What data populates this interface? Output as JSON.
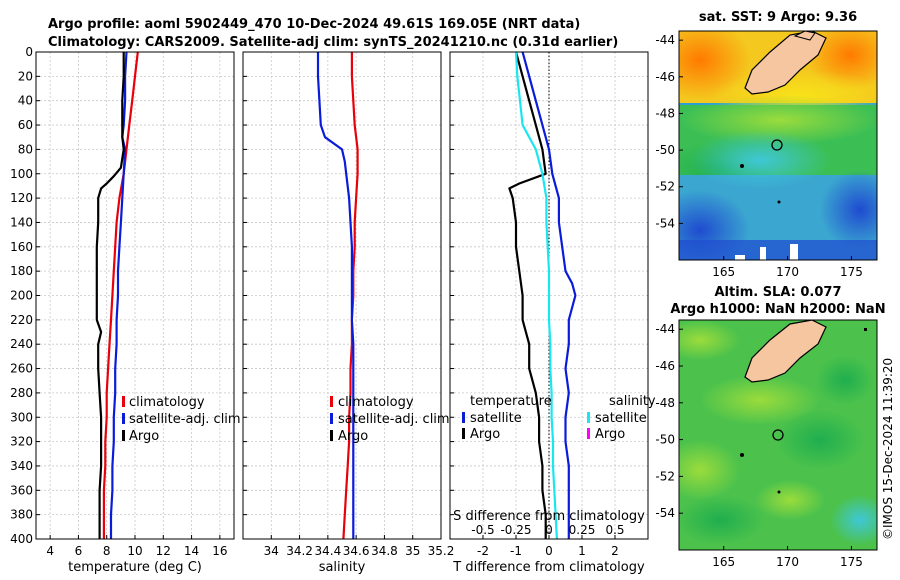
{
  "title_line1": "Argo profile: aoml 5902449_470 10-Dec-2024 49.61S 169.05E (NRT data)",
  "title_line2": "Climatology: CARS2009. Satellite-adj clim: synTS_20241210.nc (0.31d earlier)",
  "depth_ticks": [
    "0",
    "20",
    "40",
    "60",
    "80",
    "100",
    "120",
    "140",
    "160",
    "180",
    "200",
    "220",
    "240",
    "260",
    "280",
    "300",
    "320",
    "340",
    "360",
    "380",
    "400"
  ],
  "colors": {
    "climatology": "#e8000b",
    "satellite": "#0a1bd9",
    "argo": "#000000",
    "sat_salinity": "#19e6f0",
    "sat_s_magenta": "#ff00ff"
  },
  "chart_data": [
    {
      "type": "line",
      "name": "temperature",
      "xlabel": "temperature (deg C)",
      "xlim": [
        3,
        17
      ],
      "ylim": [
        0,
        400
      ],
      "xticks": [
        "4",
        "6",
        "8",
        "10",
        "12",
        "14",
        "16"
      ],
      "legend": [
        "climatology",
        "satellite-adj. clim",
        "Argo"
      ],
      "series": [
        {
          "name": "climatology",
          "depth": [
            0,
            20,
            40,
            60,
            80,
            100,
            120,
            140,
            160,
            180,
            200,
            220,
            240,
            260,
            280,
            300,
            320,
            340,
            360,
            380,
            400
          ],
          "values": [
            10.2,
            10.0,
            9.8,
            9.6,
            9.4,
            9.2,
            8.9,
            8.7,
            8.6,
            8.5,
            8.4,
            8.3,
            8.2,
            8.1,
            8.0,
            8.0,
            7.9,
            7.9,
            7.8,
            7.8,
            7.8
          ]
        },
        {
          "name": "satellite-adj. clim",
          "depth": [
            0,
            20,
            40,
            60,
            70,
            80,
            100,
            120,
            140,
            160,
            180,
            200,
            220,
            240,
            260,
            280,
            300,
            320,
            340,
            360,
            380,
            400
          ],
          "values": [
            9.4,
            9.3,
            9.3,
            9.2,
            9.1,
            9.3,
            9.2,
            9.1,
            9.0,
            8.9,
            8.8,
            8.8,
            8.7,
            8.7,
            8.6,
            8.6,
            8.5,
            8.5,
            8.4,
            8.4,
            8.3,
            8.3
          ]
        },
        {
          "name": "Argo",
          "depth": [
            0,
            20,
            40,
            60,
            70,
            80,
            95,
            102,
            108,
            112,
            120,
            140,
            160,
            180,
            200,
            220,
            230,
            240,
            260,
            280,
            300,
            320,
            340,
            360,
            380,
            400
          ],
          "values": [
            9.2,
            9.2,
            9.1,
            9.1,
            9.1,
            9.2,
            9.0,
            8.5,
            8.0,
            7.6,
            7.4,
            7.4,
            7.3,
            7.3,
            7.3,
            7.3,
            7.6,
            7.4,
            7.4,
            7.5,
            7.6,
            7.6,
            7.6,
            7.5,
            7.5,
            7.5
          ]
        }
      ]
    },
    {
      "type": "line",
      "name": "salinity",
      "xlabel": "salinity",
      "xlim": [
        33.8,
        35.2
      ],
      "ylim": [
        0,
        400
      ],
      "xticks": [
        "34",
        "34.2",
        "34.4",
        "34.6",
        "34.8",
        "35",
        "35.2"
      ],
      "legend": [
        "climatology",
        "satellite-adj. clim",
        "Argo"
      ],
      "series": [
        {
          "name": "climatology",
          "depth": [
            0,
            20,
            40,
            60,
            80,
            100,
            120,
            140,
            160,
            180,
            200,
            220,
            240,
            260,
            280,
            300,
            320,
            340,
            360,
            380,
            400
          ],
          "values": [
            34.57,
            34.57,
            34.58,
            34.59,
            34.61,
            34.61,
            34.6,
            34.59,
            34.59,
            34.58,
            34.58,
            34.57,
            34.57,
            34.56,
            34.56,
            34.55,
            34.55,
            34.54,
            34.53,
            34.52,
            34.51
          ]
        },
        {
          "name": "satellite-adj. clim",
          "depth": [
            0,
            20,
            40,
            60,
            70,
            80,
            90,
            100,
            120,
            140,
            160,
            180,
            200,
            220,
            240,
            260,
            280,
            300,
            320,
            340,
            360,
            380,
            400
          ],
          "values": [
            34.33,
            34.33,
            34.34,
            34.35,
            34.38,
            34.5,
            34.52,
            34.53,
            34.55,
            34.56,
            34.57,
            34.57,
            34.57,
            34.57,
            34.58,
            34.58,
            34.58,
            34.58,
            34.58,
            34.58,
            34.58,
            34.58,
            34.58
          ]
        }
      ]
    },
    {
      "type": "line",
      "name": "difference",
      "xlabel": "T difference from climatology",
      "xlabel_top": "S difference from climatology",
      "xlim": [
        -3,
        3
      ],
      "ylim": [
        0,
        400
      ],
      "xticks": [
        "-2",
        "-1",
        "0",
        "1",
        "2"
      ],
      "xticks_top": [
        "-0.5",
        "-0.25",
        "0",
        "0.25",
        "0.5"
      ],
      "legend_temperature_title": "temperature",
      "legend_salinity_title": "salinity",
      "legend_temperature": [
        "satellite",
        "Argo"
      ],
      "legend_salinity": [
        "satellite",
        "Argo"
      ],
      "series": [
        {
          "name": "T satellite",
          "depth": [
            0,
            20,
            40,
            60,
            80,
            100,
            120,
            140,
            160,
            180,
            190,
            200,
            220,
            240,
            260,
            280,
            300,
            320,
            340,
            360,
            380,
            400
          ],
          "values": [
            -0.8,
            -0.6,
            -0.4,
            -0.2,
            0.0,
            0.1,
            0.3,
            0.3,
            0.4,
            0.5,
            0.7,
            0.8,
            0.6,
            0.6,
            0.5,
            0.6,
            0.5,
            0.5,
            0.6,
            0.6,
            0.6,
            0.6
          ]
        },
        {
          "name": "T Argo",
          "depth": [
            0,
            20,
            40,
            60,
            80,
            100,
            108,
            112,
            120,
            140,
            160,
            180,
            200,
            220,
            240,
            260,
            280,
            300,
            320,
            340,
            360,
            380,
            400
          ],
          "values": [
            -1.0,
            -0.8,
            -0.6,
            -0.4,
            -0.2,
            -0.1,
            -0.9,
            -1.2,
            -1.1,
            -1.0,
            -1.0,
            -0.9,
            -0.8,
            -0.8,
            -0.6,
            -0.6,
            -0.4,
            -0.3,
            -0.3,
            -0.2,
            -0.2,
            -0.1,
            -0.1
          ]
        },
        {
          "name": "S satellite",
          "depth": [
            0,
            20,
            40,
            60,
            80,
            100,
            120,
            140,
            160,
            180,
            200,
            220,
            240,
            260,
            280,
            300,
            320,
            340,
            360,
            380,
            400
          ],
          "values": [
            -0.25,
            -0.24,
            -0.22,
            -0.2,
            -0.1,
            -0.05,
            -0.02,
            -0.02,
            -0.01,
            0.0,
            0.0,
            0.0,
            0.01,
            0.01,
            0.02,
            0.02,
            0.03,
            0.03,
            0.04,
            0.05,
            0.06
          ]
        }
      ]
    },
    {
      "type": "heatmap",
      "name": "sst-map",
      "title": "sat. SST: 9 Argo: 9.36",
      "xticks": [
        "165",
        "170",
        "175"
      ],
      "yticks": [
        "-44",
        "-46",
        "-48",
        "-50",
        "-52",
        "-54"
      ],
      "xlim": [
        161.5,
        177
      ],
      "ylim": [
        -56,
        -43.5
      ],
      "argo_position": {
        "lon": 169.05,
        "lat": -49.61
      }
    },
    {
      "type": "heatmap",
      "name": "sla-map",
      "title_line1": "Altim. SLA: 0.077",
      "title_line2": "Argo h1000: NaN h2000: NaN",
      "xticks": [
        "165",
        "170",
        "175"
      ],
      "yticks": [
        "-44",
        "-46",
        "-48",
        "-50",
        "-52",
        "-54"
      ],
      "xlim": [
        161.5,
        177
      ],
      "ylim": [
        -56,
        -43.5
      ],
      "argo_position": {
        "lon": 169.05,
        "lat": -49.61
      }
    }
  ],
  "side_label": "©IMOS 15-Dec-2024 11:39:20"
}
